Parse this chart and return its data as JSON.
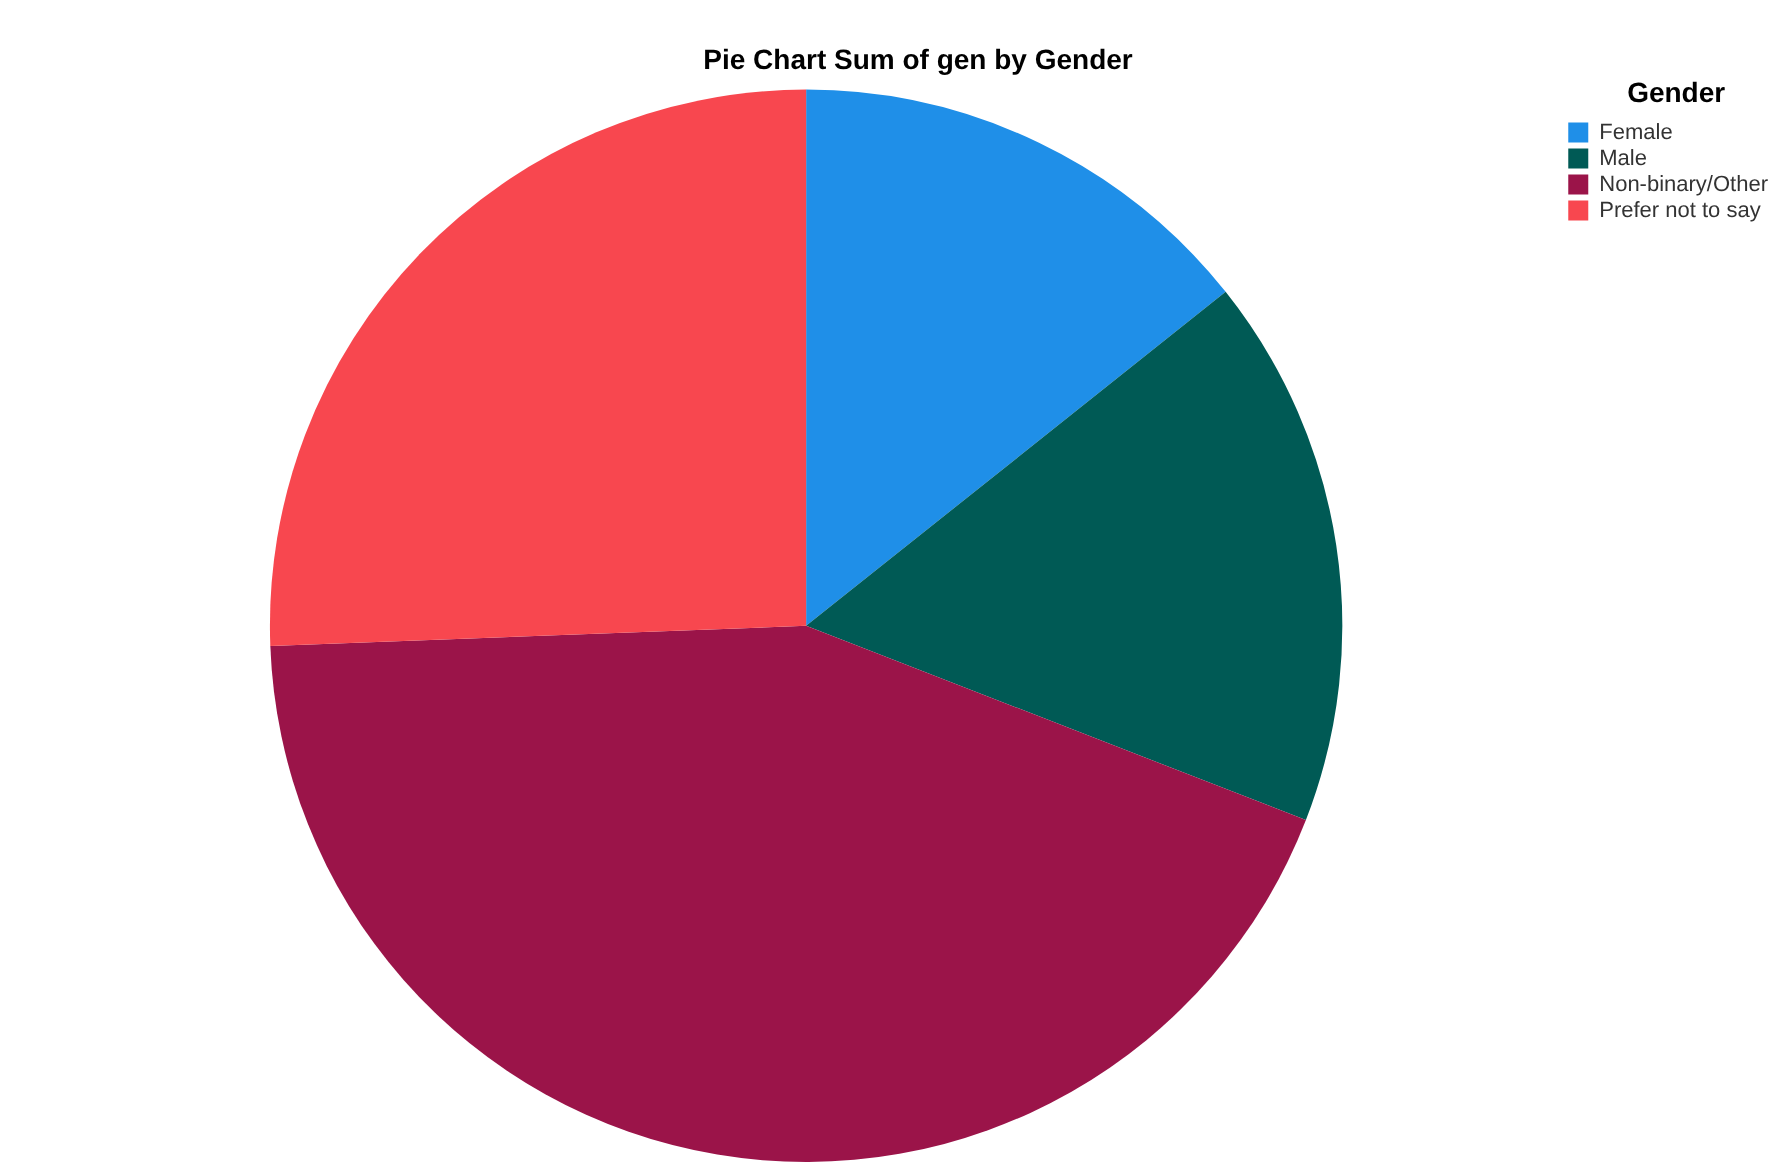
{
  "chart_data": {
    "type": "pie",
    "title": "Pie Chart Sum of gen by Gender",
    "legend_title": "Gender",
    "legend": "top right",
    "categories": [
      "Female",
      "Male",
      "Non-binary/Other",
      "Prefer not to say"
    ],
    "values": [
      14.3,
      16.6,
      43.5,
      25.6
    ],
    "colors": [
      "#1f8fe8",
      "#005a55",
      "#9b1449",
      "#f8474f"
    ]
  }
}
